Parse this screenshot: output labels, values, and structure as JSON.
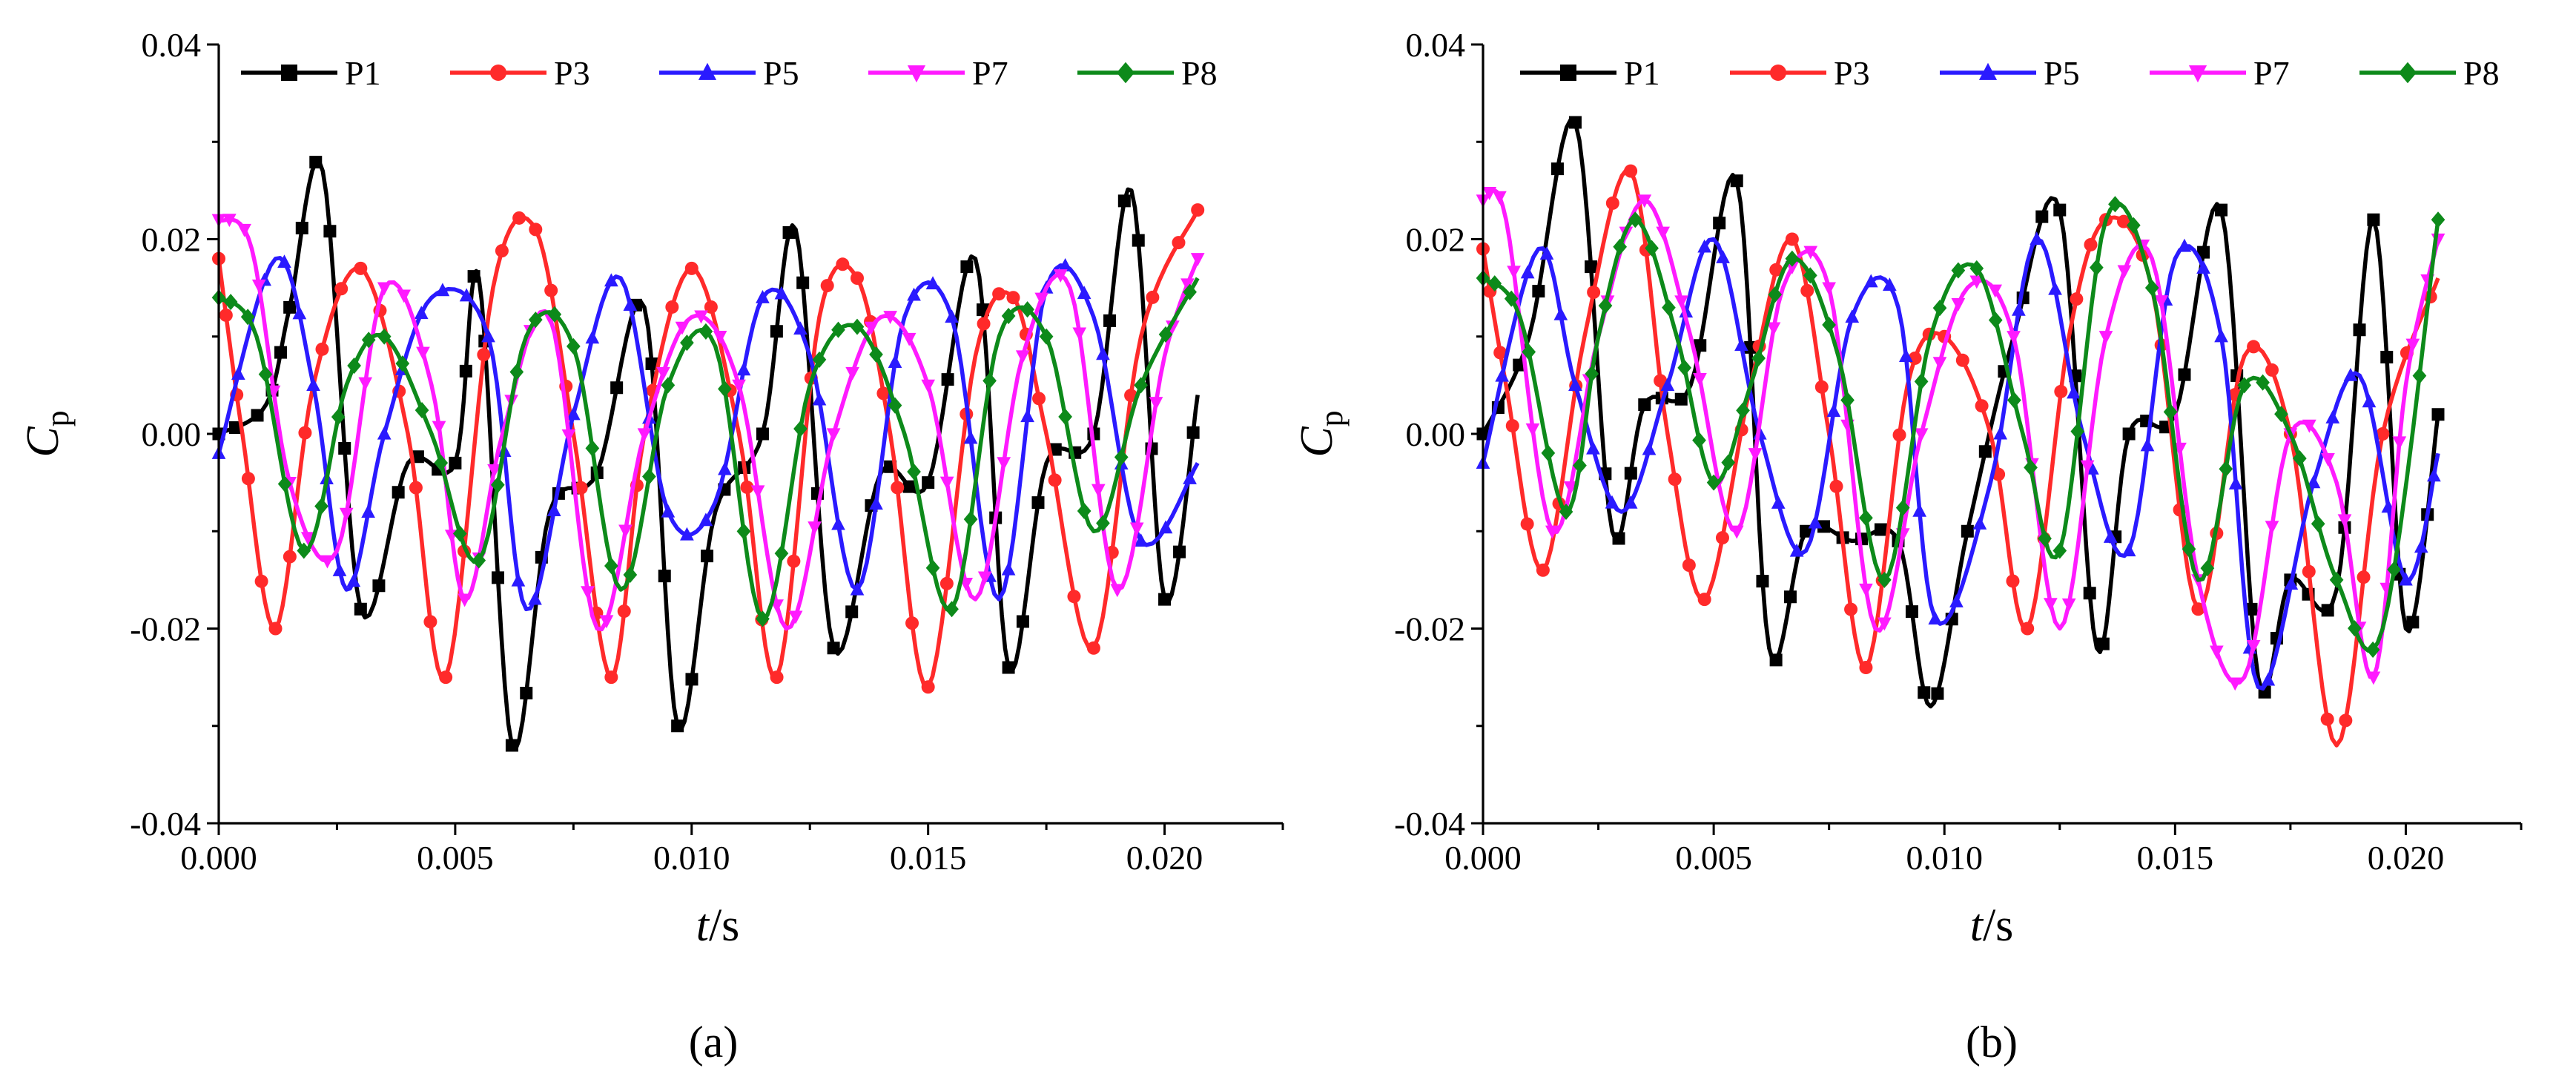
{
  "chart_data": [
    {
      "type": "line",
      "panel_label": "(a)",
      "xlabel_italic": "t",
      "xlabel_unit": "/s",
      "ylabel_main": "C",
      "ylabel_sub": "p",
      "xlim": [
        0,
        0.0225
      ],
      "ylim": [
        -0.04,
        0.04
      ],
      "xticks": [
        "0.000",
        "0.005",
        "0.010",
        "0.015",
        "0.020"
      ],
      "yticks": [
        "-0.04",
        "-0.02",
        "0.00",
        "0.02",
        "0.04"
      ],
      "legend_placement": "top",
      "series": [
        {
          "name": "P1",
          "color": "#000000",
          "marker": "square",
          "x": [
            0.0,
            0.001,
            0.0015,
            0.0022,
            0.003,
            0.004,
            0.005,
            0.0055,
            0.0062,
            0.007,
            0.008,
            0.009,
            0.0097,
            0.0105,
            0.0115,
            0.0122,
            0.013,
            0.014,
            0.015,
            0.016,
            0.0167,
            0.0175,
            0.0185,
            0.0193,
            0.02,
            0.0207
          ],
          "y": [
            0.0,
            0.003,
            0.013,
            0.027,
            -0.018,
            -0.003,
            -0.003,
            0.016,
            -0.032,
            -0.008,
            -0.004,
            0.013,
            -0.03,
            -0.008,
            0.0,
            0.021,
            -0.022,
            -0.004,
            -0.005,
            0.018,
            -0.024,
            -0.003,
            0.0,
            0.025,
            -0.017,
            0.004
          ]
        },
        {
          "name": "P3",
          "color": "#ff2a2a",
          "marker": "circle",
          "x": [
            0.0,
            0.0005,
            0.0012,
            0.002,
            0.003,
            0.004,
            0.0048,
            0.0058,
            0.0067,
            0.0075,
            0.0083,
            0.009,
            0.01,
            0.011,
            0.0118,
            0.0127,
            0.0135,
            0.0142,
            0.015,
            0.016,
            0.0168,
            0.0175,
            0.0185,
            0.0195,
            0.0207
          ],
          "y": [
            0.018,
            0.0,
            -0.02,
            0.005,
            0.017,
            0.0,
            -0.025,
            0.015,
            0.021,
            0.0,
            -0.025,
            0.0,
            0.017,
            0.0,
            -0.025,
            0.012,
            0.016,
            0.0,
            -0.026,
            0.008,
            0.014,
            0.0,
            -0.022,
            0.01,
            0.023
          ]
        },
        {
          "name": "P5",
          "color": "#2a1aff",
          "marker": "triangle-up",
          "x": [
            0.0,
            0.0012,
            0.002,
            0.0027,
            0.0035,
            0.0045,
            0.0057,
            0.0065,
            0.0075,
            0.0085,
            0.0095,
            0.0105,
            0.0115,
            0.0125,
            0.0135,
            0.0145,
            0.0155,
            0.0165,
            0.0175,
            0.0185,
            0.0195,
            0.0207
          ],
          "y": [
            -0.002,
            0.018,
            0.005,
            -0.016,
            0.0,
            0.014,
            0.01,
            -0.018,
            0.002,
            0.016,
            -0.008,
            -0.007,
            0.014,
            0.008,
            -0.016,
            0.012,
            0.012,
            -0.017,
            0.015,
            0.012,
            -0.011,
            -0.003
          ]
        },
        {
          "name": "P7",
          "color": "#ff1aff",
          "marker": "triangle-down",
          "x": [
            0.0,
            0.0007,
            0.0015,
            0.0025,
            0.0035,
            0.0045,
            0.0052,
            0.006,
            0.007,
            0.008,
            0.009,
            0.01,
            0.011,
            0.012,
            0.013,
            0.014,
            0.015,
            0.016,
            0.017,
            0.018,
            0.019,
            0.02,
            0.0207
          ],
          "y": [
            0.022,
            0.019,
            -0.005,
            -0.012,
            0.015,
            0.005,
            -0.017,
            0.0,
            0.012,
            -0.02,
            0.0,
            0.012,
            0.005,
            -0.02,
            0.0,
            0.012,
            0.005,
            -0.017,
            0.008,
            0.015,
            -0.016,
            0.008,
            0.018
          ]
        },
        {
          "name": "P8",
          "color": "#0d8a1a",
          "marker": "diamond",
          "x": [
            0.0,
            0.0008,
            0.0018,
            0.0027,
            0.0035,
            0.0045,
            0.0055,
            0.0065,
            0.0075,
            0.0085,
            0.0095,
            0.0105,
            0.0115,
            0.0125,
            0.0135,
            0.0145,
            0.0155,
            0.0165,
            0.0175,
            0.0185,
            0.0195,
            0.0207
          ],
          "y": [
            0.014,
            0.01,
            -0.012,
            0.005,
            0.01,
            0.0,
            -0.013,
            0.01,
            0.009,
            -0.016,
            0.005,
            0.009,
            -0.019,
            0.005,
            0.011,
            0.0,
            -0.018,
            0.01,
            0.01,
            -0.01,
            0.005,
            0.016
          ]
        }
      ]
    },
    {
      "type": "line",
      "panel_label": "(b)",
      "xlabel_italic": "t",
      "xlabel_unit": "/s",
      "ylabel_main": "C",
      "ylabel_sub": "p",
      "xlim": [
        0,
        0.0225
      ],
      "ylim": [
        -0.04,
        0.04
      ],
      "xticks": [
        "0.000",
        "0.005",
        "0.010",
        "0.015",
        "0.020"
      ],
      "yticks": [
        "-0.04",
        "-0.02",
        "0.00",
        "0.02",
        "0.04"
      ],
      "legend_placement": "top",
      "series": [
        {
          "name": "P1",
          "color": "#000000",
          "marker": "square",
          "x": [
            0.0,
            0.001,
            0.002,
            0.0028,
            0.0035,
            0.0045,
            0.0055,
            0.0062,
            0.007,
            0.008,
            0.009,
            0.0097,
            0.0105,
            0.0115,
            0.0125,
            0.0133,
            0.014,
            0.015,
            0.016,
            0.0168,
            0.0175,
            0.0185,
            0.0193,
            0.02,
            0.0207
          ],
          "y": [
            0.0,
            0.01,
            0.032,
            -0.01,
            0.003,
            0.005,
            0.026,
            -0.022,
            -0.01,
            -0.011,
            -0.011,
            -0.028,
            -0.01,
            0.01,
            0.023,
            -0.022,
            0.0,
            0.002,
            0.023,
            -0.025,
            -0.015,
            -0.016,
            0.022,
            -0.02,
            0.002
          ]
        },
        {
          "name": "P3",
          "color": "#ff2a2a",
          "marker": "circle",
          "x": [
            0.0,
            0.0005,
            0.0013,
            0.0022,
            0.0032,
            0.004,
            0.0048,
            0.0058,
            0.0067,
            0.0075,
            0.0083,
            0.0092,
            0.01,
            0.011,
            0.0118,
            0.0127,
            0.0135,
            0.0145,
            0.0155,
            0.0165,
            0.0175,
            0.0185,
            0.0195,
            0.0207
          ],
          "y": [
            0.019,
            0.005,
            -0.014,
            0.01,
            0.027,
            0.0,
            -0.017,
            0.005,
            0.02,
            0.0,
            -0.024,
            0.005,
            0.01,
            0.0,
            -0.02,
            0.01,
            0.022,
            0.015,
            -0.018,
            0.008,
            0.0,
            -0.032,
            0.0,
            0.016
          ]
        },
        {
          "name": "P5",
          "color": "#2a1aff",
          "marker": "triangle-up",
          "x": [
            0.0,
            0.0012,
            0.002,
            0.003,
            0.004,
            0.005,
            0.006,
            0.007,
            0.008,
            0.009,
            0.0098,
            0.011,
            0.012,
            0.013,
            0.014,
            0.015,
            0.016,
            0.0168,
            0.018,
            0.019,
            0.02,
            0.0207
          ],
          "y": [
            -0.003,
            0.019,
            0.005,
            -0.008,
            0.005,
            0.02,
            0.0,
            -0.012,
            0.012,
            0.013,
            -0.019,
            -0.005,
            0.02,
            0.0,
            -0.012,
            0.018,
            0.01,
            -0.026,
            -0.005,
            0.006,
            -0.015,
            -0.002
          ]
        },
        {
          "name": "P7",
          "color": "#ff1aff",
          "marker": "triangle-down",
          "x": [
            0.0,
            0.0005,
            0.0015,
            0.0025,
            0.0035,
            0.0045,
            0.0055,
            0.0065,
            0.0075,
            0.0085,
            0.0095,
            0.0105,
            0.0115,
            0.0125,
            0.0135,
            0.0145,
            0.0155,
            0.0165,
            0.0175,
            0.0185,
            0.0193,
            0.02,
            0.0207
          ],
          "y": [
            0.024,
            0.022,
            -0.01,
            0.01,
            0.024,
            0.01,
            -0.01,
            0.015,
            0.015,
            -0.02,
            0.0,
            0.015,
            0.01,
            -0.02,
            0.01,
            0.018,
            -0.015,
            -0.025,
            0.0,
            -0.005,
            -0.025,
            0.005,
            0.02
          ]
        },
        {
          "name": "P8",
          "color": "#0d8a1a",
          "marker": "diamond",
          "x": [
            0.0,
            0.0008,
            0.0018,
            0.0025,
            0.0033,
            0.0042,
            0.005,
            0.0058,
            0.0067,
            0.0077,
            0.0087,
            0.0097,
            0.0107,
            0.0117,
            0.0125,
            0.0135,
            0.0145,
            0.0155,
            0.0165,
            0.0175,
            0.0185,
            0.0195,
            0.0207
          ],
          "y": [
            0.016,
            0.012,
            -0.008,
            0.01,
            0.022,
            0.01,
            -0.005,
            0.005,
            0.018,
            0.008,
            -0.015,
            0.01,
            0.017,
            0.0,
            -0.012,
            0.022,
            0.015,
            -0.015,
            0.005,
            0.0,
            -0.015,
            -0.02,
            0.022
          ]
        }
      ]
    }
  ]
}
